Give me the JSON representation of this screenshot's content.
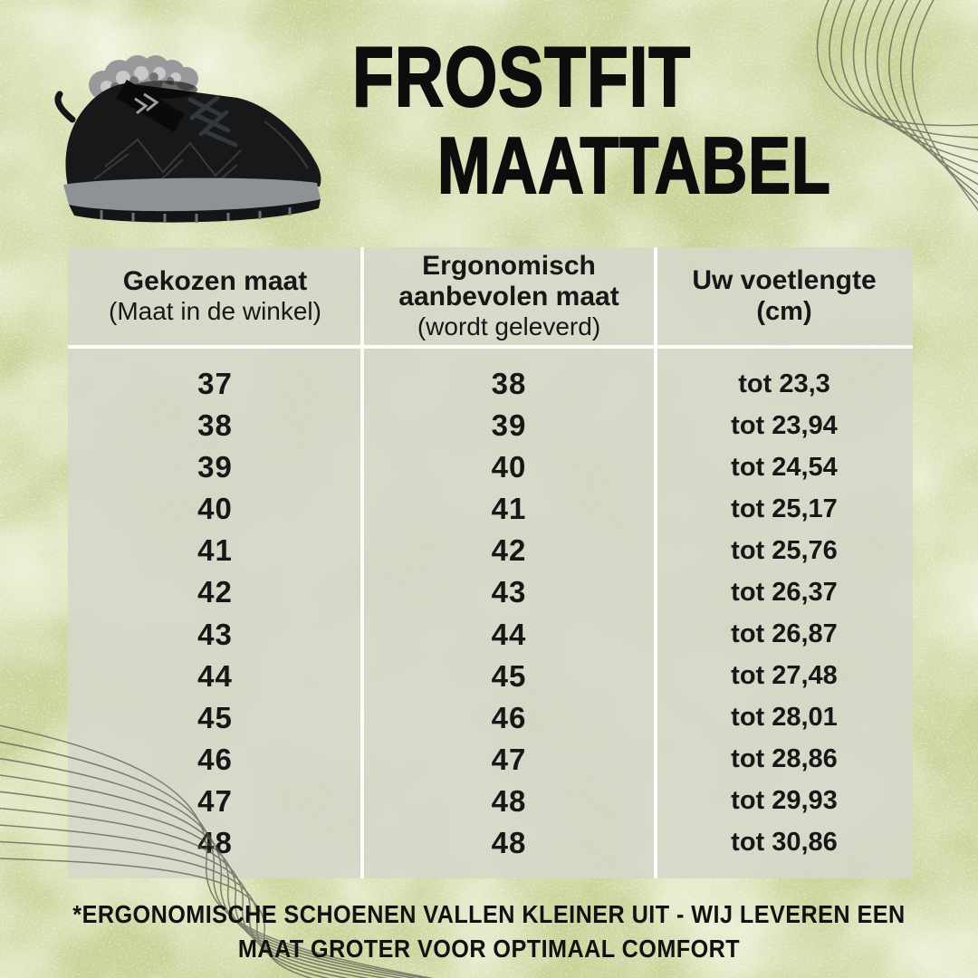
{
  "header": {
    "brand": "FROSTFIT",
    "subtitle": "MAATTABEL"
  },
  "shoe_image": {
    "description": "black winter boot with grey fur lining, velcro strap and grey rugged sole, facing right"
  },
  "chart_data": {
    "type": "table",
    "title": "FROSTFIT MAATTABEL",
    "columns": [
      {
        "title": "Gekozen maat",
        "subtitle": "(Maat in de winkel)"
      },
      {
        "title": "Ergonomisch aanbevolen maat",
        "subtitle": "(wordt geleverd)"
      },
      {
        "title": "Uw voetlengte",
        "subtitle": "(cm)"
      }
    ],
    "rows": [
      [
        "37",
        "38",
        "tot 23,3"
      ],
      [
        "38",
        "39",
        "tot 23,94"
      ],
      [
        "39",
        "40",
        "tot 24,54"
      ],
      [
        "40",
        "41",
        "tot 25,17"
      ],
      [
        "41",
        "42",
        "tot 25,76"
      ],
      [
        "42",
        "43",
        "tot 26,37"
      ],
      [
        "43",
        "44",
        "tot 26,87"
      ],
      [
        "44",
        "45",
        "tot 27,48"
      ],
      [
        "45",
        "46",
        "tot 28,01"
      ],
      [
        "46",
        "47",
        "tot 28,86"
      ],
      [
        "47",
        "48",
        "tot 29,93"
      ],
      [
        "48",
        "48",
        "tot 30,86"
      ]
    ]
  },
  "footer": {
    "line1": "*ERGONOMISCHE SCHOENEN VALLEN KLEINER UIT - WIJ LEVEREN EEN",
    "line2": "MAAT GROTER VOOR OPTIMAAL COMFORT"
  },
  "palette": {
    "background_green": "#c9d49a",
    "light_blotch": "#e8eecb",
    "dark_blotch": "#b4c47e",
    "speckle": "#f8faee",
    "panel": "#d6d7ca",
    "divider": "#ffffff",
    "text": "#171717",
    "decorative_line": "#55544a",
    "sole_grey": "#8d9297",
    "fur_grey": "#97999b"
  }
}
